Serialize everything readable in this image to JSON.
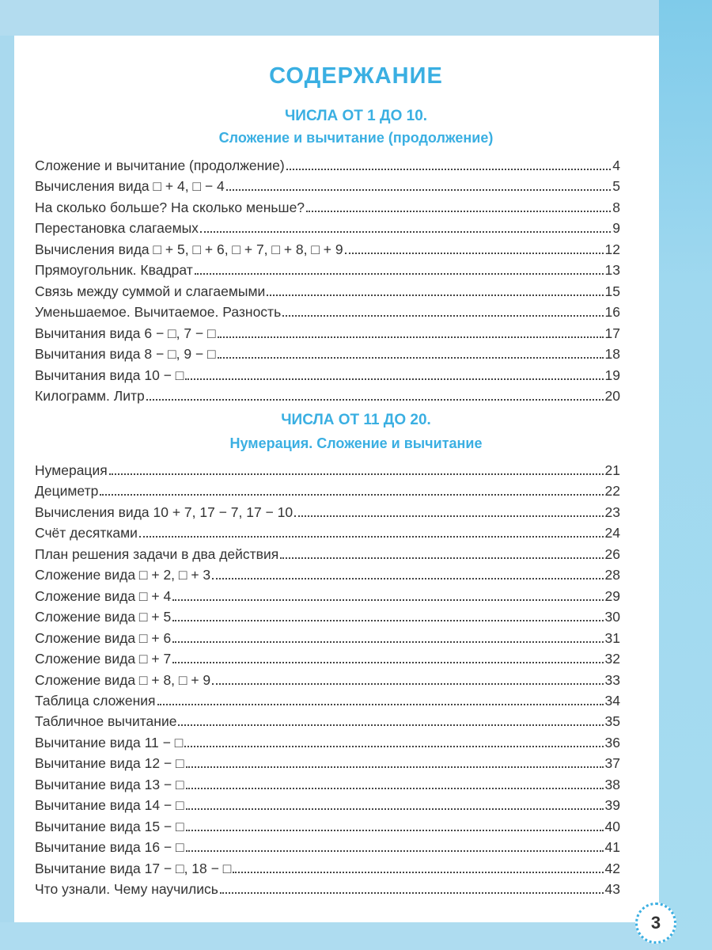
{
  "title": "СОДЕРЖАНИЕ",
  "colors": {
    "accent": "#3aafe2",
    "background_band": "#a9d9ee",
    "text": "#333333"
  },
  "sections": [
    {
      "heading": "ЧИСЛА ОТ 1 ДО 10.",
      "subheading": "Сложение и вычитание (продолжение)",
      "entries": [
        {
          "title": "Сложение и вычитание (продолжение)",
          "page": "4"
        },
        {
          "title": "Вычисления вида □ + 4, □ − 4",
          "page": "5"
        },
        {
          "title": "На сколько больше? На сколько меньше?",
          "page": "8"
        },
        {
          "title": "Перестановка слагаемых",
          "page": "9"
        },
        {
          "title": "Вычисления вида □ + 5, □ + 6, □ + 7, □ + 8, □ + 9",
          "page": "12"
        },
        {
          "title": "Прямоугольник. Квадрат",
          "page": "13"
        },
        {
          "title": "Связь между суммой и слагаемыми",
          "page": "15"
        },
        {
          "title": "Уменьшаемое. Вычитаемое. Разность",
          "page": "16"
        },
        {
          "title": "Вычитания вида 6 − □, 7 − □",
          "page": "17"
        },
        {
          "title": "Вычитания вида 8 − □, 9 − □",
          "page": "18"
        },
        {
          "title": "Вычитания вида 10 − □",
          "page": "19"
        },
        {
          "title": "Килограмм. Литр",
          "page": "20"
        }
      ]
    },
    {
      "heading": "ЧИСЛА ОТ 11 ДО 20.",
      "subheading": "Нумерация. Сложение и вычитание",
      "entries": [
        {
          "title": "Нумерация",
          "page": "21"
        },
        {
          "title": "Дециметр",
          "page": "22"
        },
        {
          "title": "Вычисления вида 10 + 7, 17 − 7, 17 − 10",
          "page": "23"
        },
        {
          "title": "Счёт десятками",
          "page": "24"
        },
        {
          "title": "План решения задачи в два действия",
          "page": "26"
        },
        {
          "title": "Сложение вида □ + 2, □ + 3",
          "page": "28"
        },
        {
          "title": "Сложение вида □ + 4",
          "page": "29"
        },
        {
          "title": "Сложение вида □ + 5",
          "page": "30"
        },
        {
          "title": "Сложение вида □ + 6",
          "page": "31"
        },
        {
          "title": "Сложение вида □ + 7",
          "page": "32"
        },
        {
          "title": "Сложение вида □ + 8, □ + 9",
          "page": "33"
        },
        {
          "title": "Таблица сложения",
          "page": "34"
        },
        {
          "title": "Табличное вычитание",
          "page": "35"
        },
        {
          "title": "Вычитание вида 11 − □",
          "page": "36"
        },
        {
          "title": "Вычитание вида 12 − □",
          "page": "37"
        },
        {
          "title": "Вычитание вида 13 − □",
          "page": "38"
        },
        {
          "title": "Вычитание вида 14 − □",
          "page": "39"
        },
        {
          "title": "Вычитание вида 15 − □",
          "page": "40"
        },
        {
          "title": "Вычитание вида 16 − □",
          "page": "41"
        },
        {
          "title": "Вычитание вида 17 − □, 18 − □",
          "page": "42"
        },
        {
          "title": "Что узнали. Чему научились",
          "page": "43"
        }
      ]
    }
  ],
  "page_number": "3"
}
